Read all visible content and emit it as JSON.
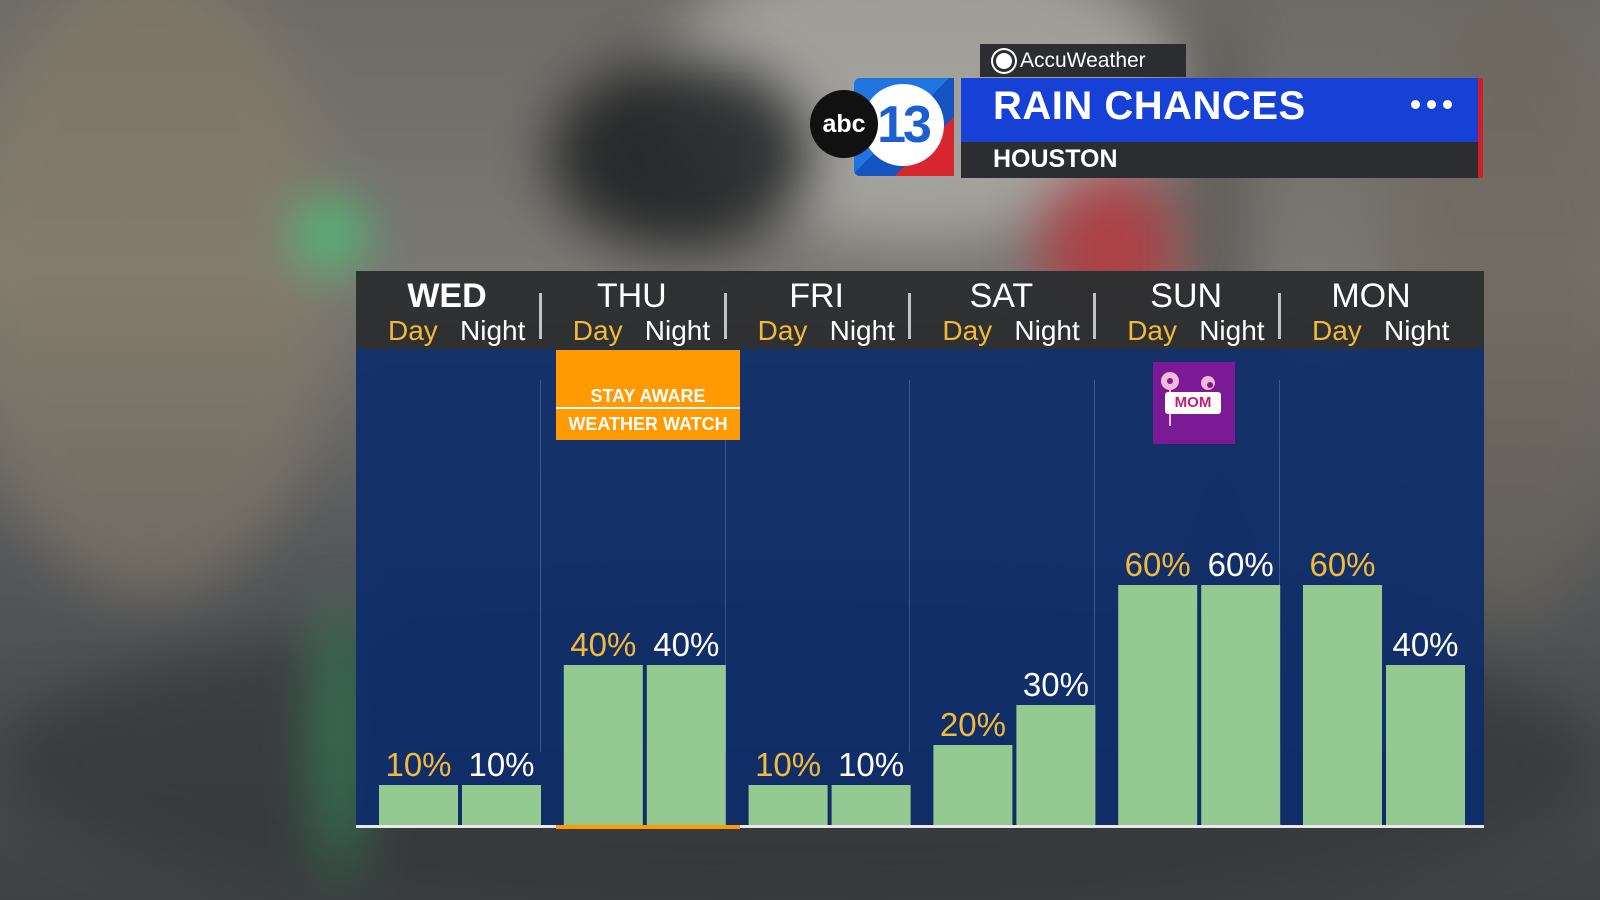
{
  "header": {
    "brand": "AccuWeather",
    "network": "abc",
    "channel": "13",
    "title": "RAIN CHANCES",
    "subtitle": "HOUSTON"
  },
  "chart_data": {
    "type": "bar",
    "categories": [
      "WED",
      "THU",
      "FRI",
      "SAT",
      "SUN",
      "MON"
    ],
    "period_labels": [
      "Day",
      "Night"
    ],
    "series": [
      {
        "name": "Day",
        "values": [
          10,
          40,
          10,
          20,
          60,
          60
        ]
      },
      {
        "name": "Night",
        "values": [
          10,
          40,
          10,
          30,
          60,
          40
        ]
      }
    ],
    "value_suffix": "%",
    "ylim": [
      0,
      100
    ],
    "grid": false,
    "bar_color": "#94ca92",
    "day_label_color": "#f2b93a",
    "night_label_color": "#ffffff"
  },
  "annotations": {
    "thu_alert": {
      "line1": "STAY AWARE",
      "line2": "WEATHER WATCH",
      "color": "#ff9a05"
    },
    "sun_badge": {
      "text": "MOM",
      "color": "#7b1a95"
    }
  }
}
